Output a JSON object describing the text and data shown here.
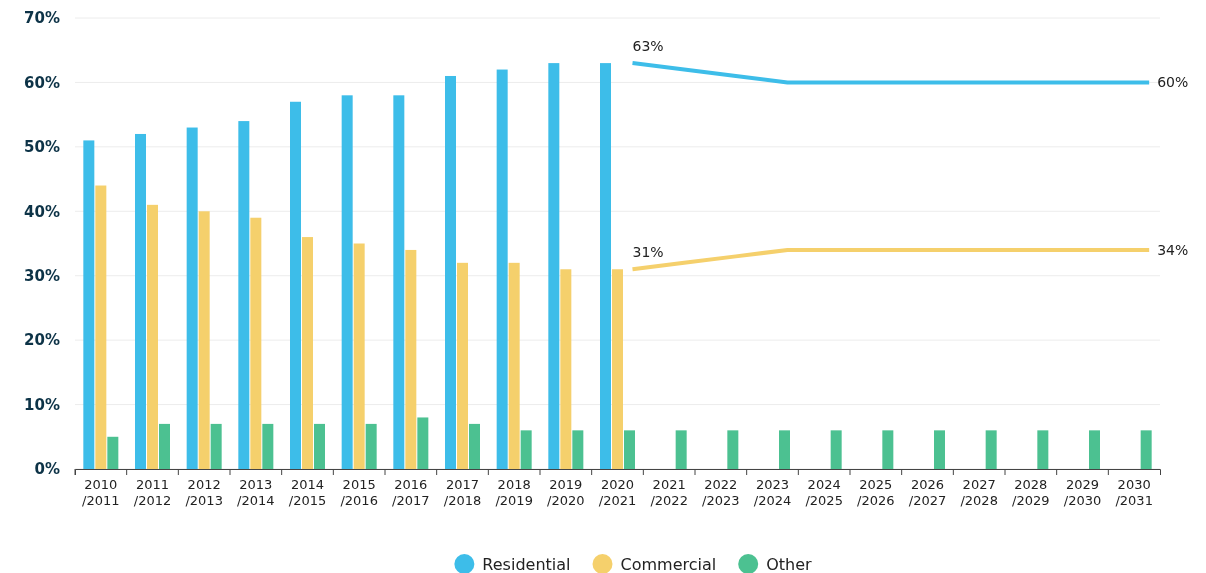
{
  "chart_data": {
    "type": "bar",
    "categories": [
      "2010/2011",
      "2011/2012",
      "2012/2013",
      "2013/2014",
      "2014/2015",
      "2015/2016",
      "2016/2017",
      "2017/2018",
      "2018/2019",
      "2019/2020",
      "2020/2021",
      "2021/2022",
      "2022/2023",
      "2023/2024",
      "2024/2025",
      "2025/2026",
      "2026/2027",
      "2027/2028",
      "2028/2029",
      "2029/2030",
      "2030/2031"
    ],
    "series": [
      {
        "name": "Residential",
        "color": "#3dbde9",
        "values": [
          51,
          52,
          53,
          54,
          57,
          58,
          58,
          61,
          62,
          63,
          63,
          null,
          null,
          null,
          null,
          null,
          null,
          null,
          null,
          null,
          null
        ]
      },
      {
        "name": "Commercial",
        "color": "#f5d06c",
        "values": [
          44,
          41,
          40,
          39,
          36,
          35,
          34,
          32,
          32,
          31,
          31,
          null,
          null,
          null,
          null,
          null,
          null,
          null,
          null,
          null,
          null
        ]
      },
      {
        "name": "Other",
        "color": "#4cc191",
        "values": [
          5,
          7,
          7,
          7,
          7,
          7,
          8,
          7,
          6,
          6,
          6,
          6,
          6,
          6,
          6,
          6,
          6,
          6,
          6,
          6,
          6
        ]
      },
      {
        "type": "line",
        "color": "#3dbde9",
        "values": [
          null,
          null,
          null,
          null,
          null,
          null,
          null,
          null,
          null,
          null,
          63,
          62,
          61,
          60,
          60,
          60,
          60,
          60,
          60,
          60,
          60
        ],
        "value_labels": [
          null,
          null,
          null,
          null,
          null,
          null,
          null,
          null,
          null,
          null,
          "63%",
          null,
          null,
          null,
          null,
          null,
          null,
          null,
          null,
          null,
          "60%"
        ]
      },
      {
        "type": "line",
        "color": "#f5d06c",
        "values": [
          null,
          null,
          null,
          null,
          null,
          null,
          null,
          null,
          null,
          null,
          31,
          32,
          33,
          34,
          34,
          34,
          34,
          34,
          34,
          34,
          34
        ],
        "value_labels": [
          null,
          null,
          null,
          null,
          null,
          null,
          null,
          null,
          null,
          null,
          "31%",
          null,
          null,
          null,
          null,
          null,
          null,
          null,
          null,
          null,
          "34%"
        ]
      }
    ],
    "ylim": [
      0,
      70
    ],
    "yticks": [
      {
        "value": 0,
        "label": "0%"
      },
      {
        "value": 10,
        "label": "10%"
      },
      {
        "value": 20,
        "label": "20%"
      },
      {
        "value": 30,
        "label": "30%"
      },
      {
        "value": 40,
        "label": "40%"
      },
      {
        "value": 50,
        "label": "50%"
      },
      {
        "value": 60,
        "label": "60%"
      },
      {
        "value": 70,
        "label": "70%"
      }
    ],
    "grid": "y",
    "legend": "bottom"
  }
}
